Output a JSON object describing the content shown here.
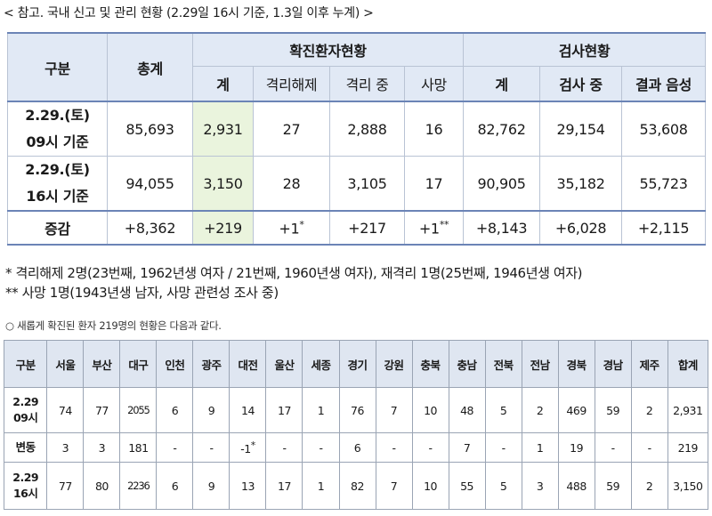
{
  "caption": "< 참고. 국내 신고 및 관리 현황 (2.29일 16시 기준, 1.3일 이후 누계) >",
  "summary": {
    "headers": {
      "category": "구분",
      "total": "총계",
      "confirmed_group": "확진환자현황",
      "test_group": "검사현황",
      "confirmed_sub": [
        "계",
        "격리해제",
        "격리 중",
        "사망"
      ],
      "test_sub": [
        "계",
        "검사 중",
        "결과 음성"
      ]
    },
    "rows": [
      {
        "label1": "2.29.(토)",
        "label2": "09시 기준",
        "values": [
          "85,693",
          "2,931",
          "27",
          "2,888",
          "16",
          "82,762",
          "29,154",
          "53,608"
        ]
      },
      {
        "label1": "2.29.(토)",
        "label2": "16시 기준",
        "values": [
          "94,055",
          "3,150",
          "28",
          "3,105",
          "17",
          "90,905",
          "35,182",
          "55,723"
        ]
      }
    ],
    "increase": {
      "label": "증감",
      "values": [
        "+8,362",
        "+219",
        "+1",
        "+217",
        "+1",
        "+8,143",
        "+6,028",
        "+2,115"
      ],
      "marks": {
        "released": "*",
        "death": "**"
      }
    }
  },
  "notes": {
    "line1": "* 격리해제 2명(23번째, 1962년생 여자 / 21번째, 1960년생 여자), 재격리 1명(25번째, 1946년생 여자)",
    "line2": "** 사망 1명(1943년생 남자, 사망 관련성 조사 중)"
  },
  "regional": {
    "caption": "○ 새롭게 확진된 환자 219명의 현황은 다음과 같다.",
    "headers": [
      "구분",
      "서울",
      "부산",
      "대구",
      "인천",
      "광주",
      "대전",
      "울산",
      "세종",
      "경기",
      "강원",
      "충북",
      "충남",
      "전북",
      "전남",
      "경북",
      "경남",
      "제주",
      "합계"
    ],
    "rows": [
      {
        "label1": "2.29",
        "label2": "09시",
        "values": [
          "74",
          "77",
          "2055",
          "6",
          "9",
          "14",
          "17",
          "1",
          "76",
          "7",
          "10",
          "48",
          "5",
          "2",
          "469",
          "59",
          "2",
          "2,931"
        ]
      },
      {
        "label1": "변동",
        "label2": "",
        "values": [
          "3",
          "3",
          "181",
          "-",
          "-",
          "-1",
          "-",
          "-",
          "6",
          "-",
          "-",
          "7",
          "-",
          "1",
          "19",
          "-",
          "-",
          "219"
        ],
        "daejeon_mark": "*"
      },
      {
        "label1": "2.29",
        "label2": "16시",
        "values": [
          "77",
          "80",
          "2236",
          "6",
          "9",
          "13",
          "17",
          "1",
          "82",
          "7",
          "10",
          "55",
          "5",
          "3",
          "488",
          "59",
          "2",
          "3,150"
        ]
      }
    ]
  }
}
